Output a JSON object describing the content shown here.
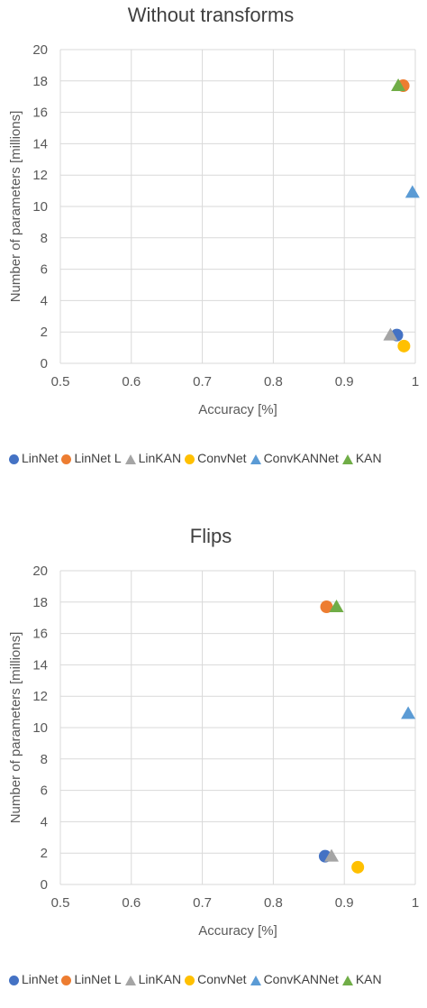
{
  "chart_data": [
    {
      "type": "scatter",
      "title": "Without transforms",
      "xlabel": "Accuracy [%]",
      "ylabel": "Number of parameters [millions]",
      "xlim": [
        0.5,
        1
      ],
      "ylim": [
        0,
        20
      ],
      "xticks": [
        "0.5",
        "0.6",
        "0.7",
        "0.8",
        "0.9",
        "1"
      ],
      "yticks": [
        "0",
        "2",
        "4",
        "6",
        "8",
        "10",
        "12",
        "14",
        "16",
        "18",
        "20"
      ],
      "grid": true,
      "legend_position": "bottom",
      "series": [
        {
          "name": "LinNet",
          "marker": "circle",
          "color": "#4472c4",
          "x": [
            0.974
          ],
          "y": [
            1.8
          ]
        },
        {
          "name": "LinNet L",
          "marker": "circle",
          "color": "#ed7d31",
          "x": [
            0.983
          ],
          "y": [
            17.7
          ]
        },
        {
          "name": "LinKAN",
          "marker": "triangle",
          "color": "#a5a5a5",
          "x": [
            0.965
          ],
          "y": [
            1.8
          ]
        },
        {
          "name": "ConvNet",
          "marker": "circle",
          "color": "#ffc000",
          "x": [
            0.984
          ],
          "y": [
            1.1
          ]
        },
        {
          "name": "ConvKANNet",
          "marker": "triangle",
          "color": "#5b9bd5",
          "x": [
            0.996
          ],
          "y": [
            10.9
          ]
        },
        {
          "name": "KAN",
          "marker": "triangle",
          "color": "#70ad47",
          "x": [
            0.976
          ],
          "y": [
            17.7
          ]
        }
      ]
    },
    {
      "type": "scatter",
      "title": "Flips",
      "xlabel": "Accuracy [%]",
      "ylabel": "Number of parameters [millions]",
      "xlim": [
        0.5,
        1
      ],
      "ylim": [
        0,
        20
      ],
      "xticks": [
        "0.5",
        "0.6",
        "0.7",
        "0.8",
        "0.9",
        "1"
      ],
      "yticks": [
        "0",
        "2",
        "4",
        "6",
        "8",
        "10",
        "12",
        "14",
        "16",
        "18",
        "20"
      ],
      "grid": true,
      "legend_position": "bottom",
      "series": [
        {
          "name": "LinNet",
          "marker": "circle",
          "color": "#4472c4",
          "x": [
            0.873
          ],
          "y": [
            1.8
          ]
        },
        {
          "name": "LinNet L",
          "marker": "circle",
          "color": "#ed7d31",
          "x": [
            0.875
          ],
          "y": [
            17.7
          ]
        },
        {
          "name": "LinKAN",
          "marker": "triangle",
          "color": "#a5a5a5",
          "x": [
            0.882
          ],
          "y": [
            1.8
          ]
        },
        {
          "name": "ConvNet",
          "marker": "circle",
          "color": "#ffc000",
          "x": [
            0.919
          ],
          "y": [
            1.1
          ]
        },
        {
          "name": "ConvKANNet",
          "marker": "triangle",
          "color": "#5b9bd5",
          "x": [
            0.99
          ],
          "y": [
            10.9
          ]
        },
        {
          "name": "KAN",
          "marker": "triangle",
          "color": "#70ad47",
          "x": [
            0.889
          ],
          "y": [
            17.7
          ]
        }
      ]
    }
  ]
}
